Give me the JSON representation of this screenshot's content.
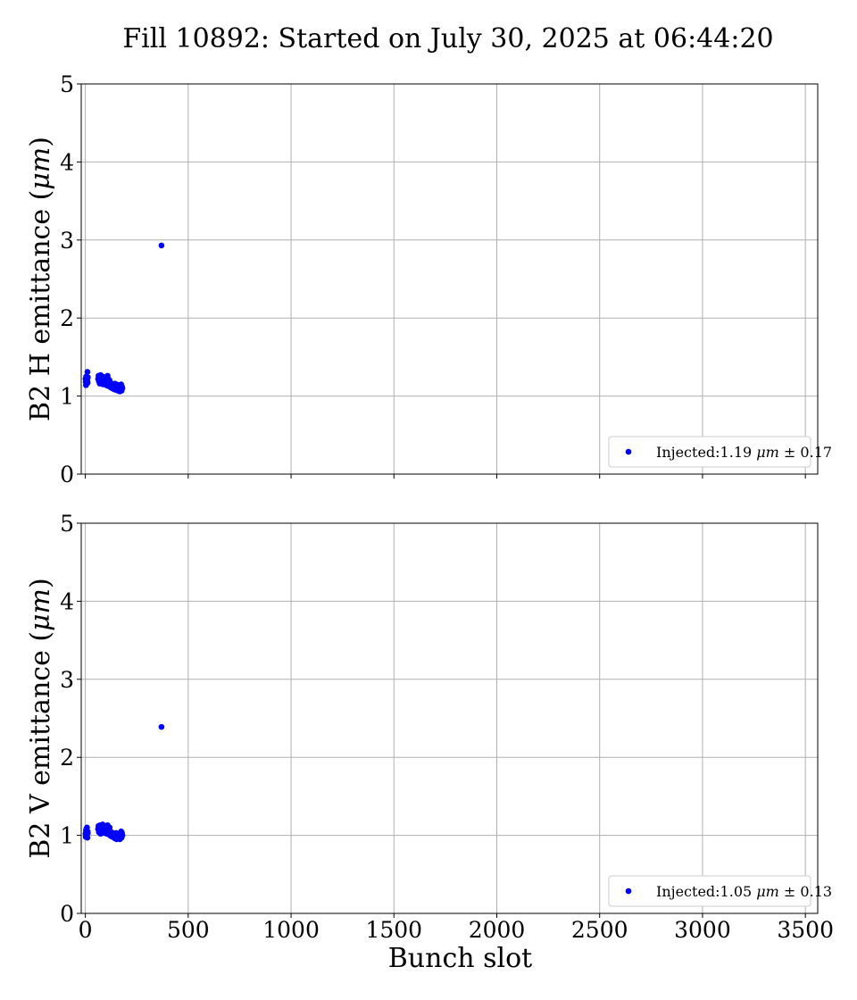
{
  "chart_data": [
    {
      "type": "scatter",
      "title": "Fill 10892: Started on July 30, 2025 at 06:44:20",
      "xlabel": "",
      "ylabel": "B2 H emittance (μm)",
      "xlim": [
        -20,
        3560
      ],
      "ylim": [
        0,
        5
      ],
      "xticks": [
        0,
        500,
        1000,
        1500,
        2000,
        2500,
        3000,
        3500
      ],
      "yticks": [
        0,
        1,
        2,
        3,
        4,
        5
      ],
      "show_x_tick_labels": false,
      "grid": true,
      "legend_position": "lower-right",
      "series": [
        {
          "name": "Injected:1.19 μm ± 0.17",
          "color": "#0000ff",
          "x": [
            1,
            2,
            3,
            4,
            5,
            6,
            7,
            8,
            9,
            10,
            11,
            12,
            62,
            64,
            66,
            68,
            70,
            72,
            74,
            76,
            78,
            80,
            82,
            84,
            86,
            88,
            90,
            92,
            94,
            96,
            98,
            100,
            102,
            104,
            106,
            108,
            110,
            112,
            114,
            116,
            118,
            120,
            122,
            124,
            126,
            128,
            130,
            132,
            134,
            136,
            138,
            140,
            142,
            144,
            146,
            148,
            150,
            152,
            154,
            156,
            158,
            160,
            162,
            164,
            166,
            168,
            170,
            172,
            174,
            176,
            178,
            180,
            370
          ],
          "y": [
            1.22,
            1.18,
            1.14,
            1.25,
            1.19,
            1.21,
            1.16,
            1.23,
            1.2,
            1.31,
            1.17,
            1.24,
            1.22,
            1.26,
            1.19,
            1.24,
            1.16,
            1.21,
            1.27,
            1.18,
            1.23,
            1.17,
            1.2,
            1.25,
            1.15,
            1.22,
            1.18,
            1.24,
            1.2,
            1.16,
            1.23,
            1.19,
            1.14,
            1.21,
            1.17,
            1.26,
            1.13,
            1.22,
            1.18,
            1.15,
            1.2,
            1.13,
            1.17,
            1.11,
            1.16,
            1.12,
            1.14,
            1.1,
            1.15,
            1.12,
            1.09,
            1.14,
            1.11,
            1.16,
            1.08,
            1.13,
            1.1,
            1.15,
            1.09,
            1.12,
            1.07,
            1.14,
            1.1,
            1.08,
            1.13,
            1.06,
            1.11,
            1.09,
            1.15,
            1.07,
            1.12,
            1.1,
            2.93
          ]
        }
      ]
    },
    {
      "type": "scatter",
      "title": "",
      "xlabel": "Bunch slot",
      "ylabel": "B2 V emittance (μm)",
      "xlim": [
        -20,
        3560
      ],
      "ylim": [
        0,
        5
      ],
      "xticks": [
        0,
        500,
        1000,
        1500,
        2000,
        2500,
        3000,
        3500
      ],
      "yticks": [
        0,
        1,
        2,
        3,
        4,
        5
      ],
      "show_x_tick_labels": true,
      "grid": true,
      "legend_position": "lower-right",
      "series": [
        {
          "name": "Injected:1.05 μm ± 0.13",
          "color": "#0000ff",
          "x": [
            1,
            2,
            3,
            4,
            5,
            6,
            7,
            8,
            9,
            10,
            11,
            12,
            62,
            64,
            66,
            68,
            70,
            72,
            74,
            76,
            78,
            80,
            82,
            84,
            86,
            88,
            90,
            92,
            94,
            96,
            98,
            100,
            102,
            104,
            106,
            108,
            110,
            112,
            114,
            116,
            118,
            120,
            122,
            124,
            126,
            128,
            130,
            132,
            134,
            136,
            138,
            140,
            142,
            144,
            146,
            148,
            150,
            152,
            154,
            156,
            158,
            160,
            162,
            164,
            166,
            168,
            170,
            172,
            174,
            176,
            178,
            180,
            370
          ],
          "y": [
            1.02,
            0.98,
            1.06,
            1.0,
            1.08,
            0.99,
            1.04,
            1.1,
            1.01,
            0.97,
            1.05,
            1.03,
            1.08,
            1.12,
            1.04,
            1.1,
            1.06,
            1.13,
            1.02,
            1.09,
            1.05,
            1.11,
            1.07,
            1.14,
            1.03,
            1.1,
            1.06,
            1.12,
            1.04,
            1.08,
            1.11,
            1.05,
            1.09,
            1.02,
            1.07,
            1.13,
            1.04,
            1.08,
            1.01,
            1.06,
            1.1,
            1.03,
            1.05,
            0.99,
            1.04,
            1.0,
            1.02,
            0.98,
            1.03,
            0.99,
            1.01,
            0.97,
            1.02,
            0.96,
            1.0,
            0.98,
            1.03,
            0.95,
            0.99,
            1.01,
            0.97,
            1.0,
            0.96,
            1.02,
            0.98,
            0.95,
            1.01,
            0.99,
            1.05,
            0.97,
            1.03,
            1.0,
            2.39
          ]
        }
      ]
    }
  ]
}
